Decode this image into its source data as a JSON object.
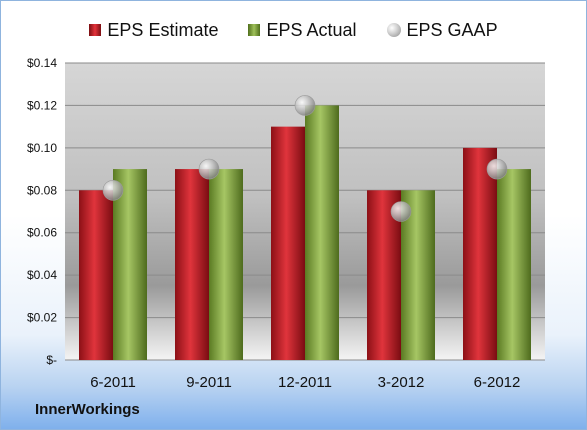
{
  "chart_data": {
    "type": "bar",
    "categories": [
      "6-2011",
      "9-2011",
      "12-2011",
      "3-2012",
      "6-2012"
    ],
    "series": [
      {
        "name": "EPS Estimate",
        "type": "bar",
        "values": [
          0.08,
          0.09,
          0.11,
          0.08,
          0.1
        ]
      },
      {
        "name": "EPS Actual",
        "type": "bar",
        "values": [
          0.09,
          0.09,
          0.12,
          0.08,
          0.09
        ]
      },
      {
        "name": "EPS GAAP",
        "type": "scatter",
        "values": [
          0.08,
          0.09,
          0.12,
          0.07,
          0.09
        ]
      }
    ],
    "ylim": [
      0,
      0.14
    ],
    "yticks": [
      0,
      0.02,
      0.04,
      0.06,
      0.08,
      0.1,
      0.12,
      0.14
    ],
    "ytick_labels": [
      "$-",
      "$0.02",
      "$0.04",
      "$0.06",
      "$0.08",
      "$0.10",
      "$0.12",
      "$0.14"
    ],
    "grid": true,
    "legend_position": "top",
    "colors": {
      "estimate": "#c8262e",
      "actual": "#8db04a",
      "gaap": "#bdbdbd"
    }
  },
  "company": "InnerWorkings"
}
